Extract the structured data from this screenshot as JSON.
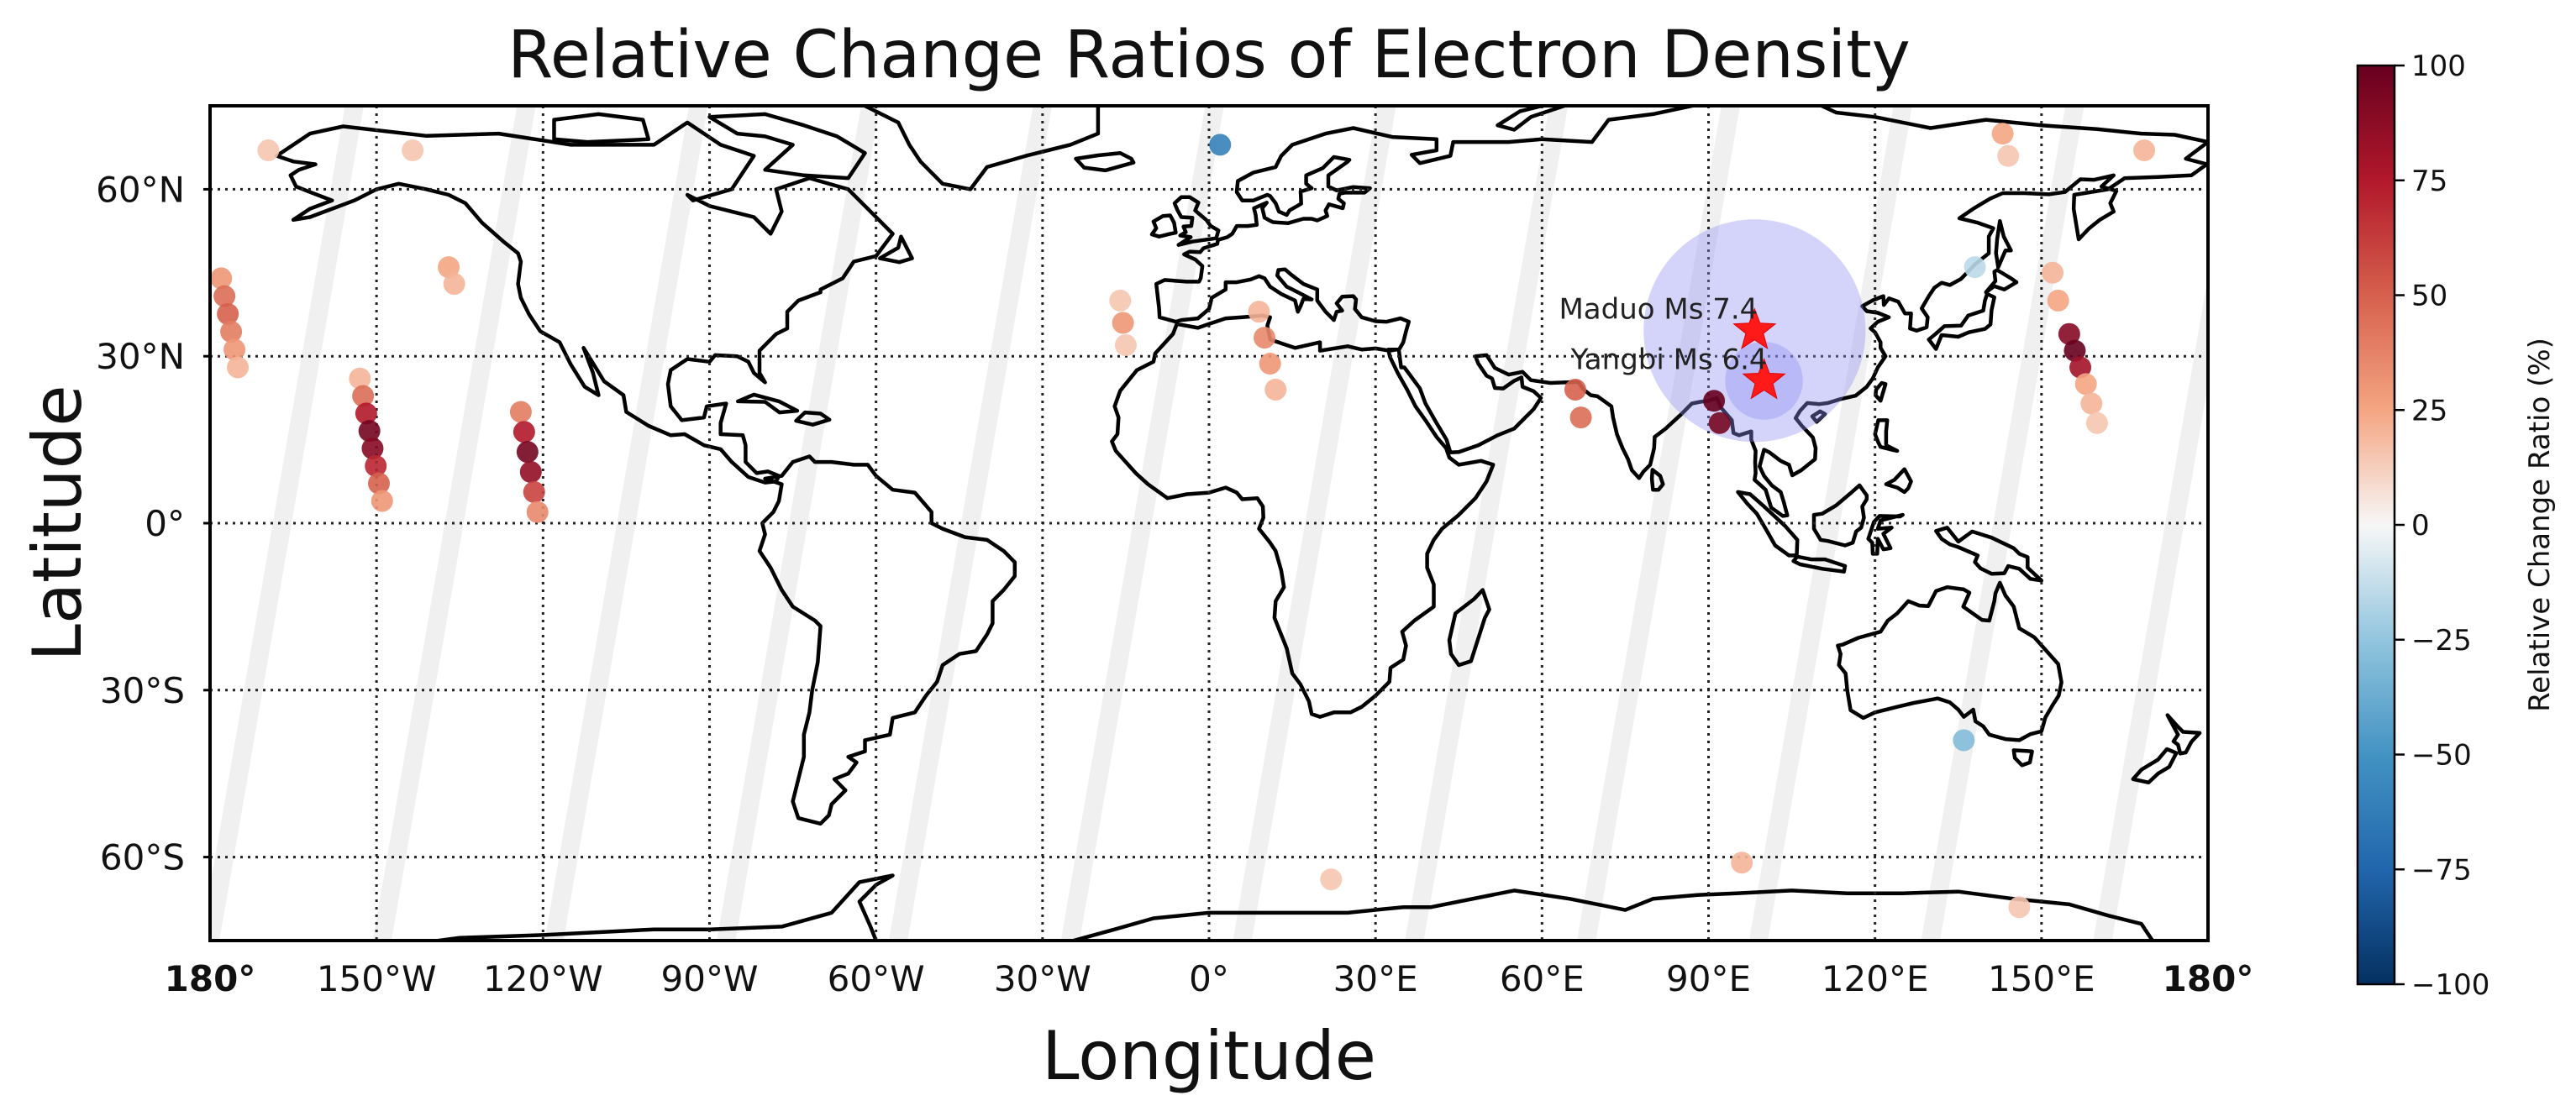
{
  "chart_data": {
    "type": "scatter",
    "title": "Relative Change Ratios of Electron Density",
    "xlabel": "Longitude",
    "ylabel": "Latitude",
    "xlim": [
      -180,
      180
    ],
    "ylim": [
      -75,
      75
    ],
    "x_ticks": [
      {
        "value": -180,
        "label": "180°"
      },
      {
        "value": -150,
        "label": "150°W"
      },
      {
        "value": -120,
        "label": "120°W"
      },
      {
        "value": -90,
        "label": "90°W"
      },
      {
        "value": -60,
        "label": "60°W"
      },
      {
        "value": -30,
        "label": "30°W"
      },
      {
        "value": 0,
        "label": "0°"
      },
      {
        "value": 30,
        "label": "30°E"
      },
      {
        "value": 60,
        "label": "60°E"
      },
      {
        "value": 90,
        "label": "90°E"
      },
      {
        "value": 120,
        "label": "120°E"
      },
      {
        "value": 150,
        "label": "150°E"
      },
      {
        "value": 180,
        "label": "180°"
      }
    ],
    "y_ticks": [
      {
        "value": 60,
        "label": "60°N"
      },
      {
        "value": 30,
        "label": "30°N"
      },
      {
        "value": 0,
        "label": "0°"
      },
      {
        "value": -30,
        "label": "30°S"
      },
      {
        "value": -60,
        "label": "60°S"
      }
    ],
    "grid": true,
    "colorbar": {
      "label": "Relative Change Ratio (%)",
      "min": -100,
      "max": 100,
      "ticks": [
        {
          "value": 100,
          "label": "100"
        },
        {
          "value": 75,
          "label": "75"
        },
        {
          "value": 50,
          "label": "50"
        },
        {
          "value": 25,
          "label": "25"
        },
        {
          "value": 0,
          "label": "0"
        },
        {
          "value": -25,
          "label": "−25"
        },
        {
          "value": -50,
          "label": "−50"
        },
        {
          "value": -75,
          "label": "−75"
        },
        {
          "value": -100,
          "label": "−100"
        }
      ],
      "colormap": "RdBu_r"
    },
    "orbit_tracks": [
      {
        "lat_start": -75,
        "lon_start": -180,
        "lat_end": 75,
        "lon_end": -154
      },
      {
        "lat_start": -75,
        "lon_start": -149,
        "lat_end": 75,
        "lon_end": -123
      },
      {
        "lat_start": -75,
        "lon_start": -118,
        "lat_end": 75,
        "lon_end": -92
      },
      {
        "lat_start": -75,
        "lon_start": -87,
        "lat_end": 75,
        "lon_end": -61
      },
      {
        "lat_start": -75,
        "lon_start": -56,
        "lat_end": 75,
        "lon_end": -30
      },
      {
        "lat_start": -75,
        "lon_start": -25,
        "lat_end": 75,
        "lon_end": 1
      },
      {
        "lat_start": -75,
        "lon_start": 6,
        "lat_end": 75,
        "lon_end": 32
      },
      {
        "lat_start": -75,
        "lon_start": 37,
        "lat_end": 75,
        "lon_end": 63
      },
      {
        "lat_start": -75,
        "lon_start": 68,
        "lat_end": 75,
        "lon_end": 94
      },
      {
        "lat_start": -75,
        "lon_start": 99,
        "lat_end": 75,
        "lon_end": 125
      },
      {
        "lat_start": -75,
        "lon_start": 130,
        "lat_end": 75,
        "lon_end": 156
      },
      {
        "lat_start": -75,
        "lon_start": 161,
        "lat_end": 75,
        "lon_end": 187
      }
    ],
    "anomaly_segments": [
      {
        "lat_start": 44,
        "lon_start": -178,
        "lat_end": 28,
        "lon_end": -175,
        "values": [
          30,
          45,
          50,
          40,
          30,
          20
        ]
      },
      {
        "lat_start": 26,
        "lon_start": -153,
        "lat_end": 4,
        "lon_end": -149,
        "values": [
          20,
          45,
          75,
          95,
          90,
          70,
          50,
          30
        ]
      },
      {
        "lat_start": 20,
        "lon_start": -124,
        "lat_end": 2,
        "lon_end": -121,
        "values": [
          40,
          75,
          95,
          85,
          60,
          35
        ]
      },
      {
        "lat_start": 46,
        "lon_start": -137,
        "lat_end": 43,
        "lon_end": -136,
        "values": [
          25,
          20
        ]
      },
      {
        "lat_start": 68,
        "lon_start": -170,
        "lat_end": 66,
        "lon_end": -169,
        "values": [
          15
        ]
      },
      {
        "lat_start": 68,
        "lon_start": -144,
        "lat_end": 66,
        "lon_end": -143,
        "values": [
          15
        ]
      },
      {
        "lat_start": 40,
        "lon_start": -16,
        "lat_end": 32,
        "lon_end": -15,
        "values": [
          15,
          30,
          15
        ]
      },
      {
        "lat_start": 38,
        "lon_start": 9,
        "lat_end": 24,
        "lon_end": 12,
        "values": [
          20,
          35,
          30,
          20
        ]
      },
      {
        "lat_start": 24,
        "lon_start": 66,
        "lat_end": 19,
        "lon_end": 67,
        "values": [
          50,
          45
        ]
      },
      {
        "lat_start": 22,
        "lon_start": 91,
        "lat_end": 18,
        "lon_end": 92,
        "values": [
          100,
          95
        ]
      },
      {
        "lat_start": 34,
        "lon_start": 155,
        "lat_end": 28,
        "lon_end": 157,
        "values": [
          90,
          100,
          80
        ]
      },
      {
        "lat_start": 45,
        "lon_start": 152,
        "lat_end": 40,
        "lon_end": 153,
        "values": [
          20,
          25
        ]
      },
      {
        "lat_start": 25,
        "lon_start": 158,
        "lat_end": 18,
        "lon_end": 160,
        "values": [
          25,
          20,
          15
        ]
      },
      {
        "lat_start": 68,
        "lon_start": 2,
        "lat_end": 68,
        "lon_end": 2,
        "values": [
          -60
        ]
      },
      {
        "lat_start": 70,
        "lon_start": 143,
        "lat_end": 66,
        "lon_end": 144,
        "values": [
          25,
          15
        ]
      },
      {
        "lat_start": 68,
        "lon_start": 168,
        "lat_end": 66,
        "lon_end": 169,
        "values": [
          20
        ]
      },
      {
        "lat_start": 46,
        "lon_start": 138,
        "lat_end": 46,
        "lon_end": 138,
        "values": [
          -15
        ]
      },
      {
        "lat_start": -39,
        "lon_start": 136,
        "lat_end": -39,
        "lon_end": 136,
        "values": [
          -30
        ]
      },
      {
        "lat_start": -61,
        "lon_start": 96,
        "lat_end": -61,
        "lon_end": 96,
        "values": [
          20
        ]
      },
      {
        "lat_start": -64,
        "lon_start": 22,
        "lat_end": -64,
        "lon_end": 22,
        "values": [
          15
        ]
      },
      {
        "lat_start": -69,
        "lon_start": 146,
        "lat_end": -69,
        "lon_end": 146,
        "values": [
          15
        ]
      }
    ],
    "earthquakes": [
      {
        "name": "Maduo Ms 7.4",
        "lon": 98.3,
        "lat": 34.6,
        "zone_radius_deg": 20
      },
      {
        "name": "Yangbi Ms 6.4",
        "lon": 100,
        "lat": 25.6,
        "zone_radius_deg": 7
      }
    ]
  }
}
